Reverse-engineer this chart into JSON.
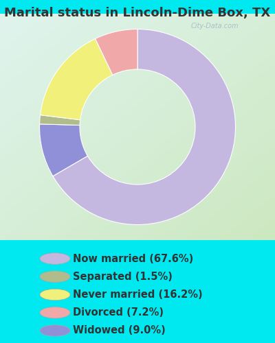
{
  "title": "Marital status in Lincoln-Dime Box, TX",
  "title_color": "#333333",
  "title_fontsize": 13,
  "slices": [
    {
      "label": "Now married (67.6%)",
      "value": 67.6,
      "color": "#c5b8e0"
    },
    {
      "label": "Separated (1.5%)",
      "value": 1.5,
      "color": "#b0bc8c"
    },
    {
      "label": "Never married (16.2%)",
      "value": 16.2,
      "color": "#f0f07a"
    },
    {
      "label": "Divorced (7.2%)",
      "value": 7.2,
      "color": "#f0a8a8"
    },
    {
      "label": "Widowed (9.0%)",
      "value": 9.0,
      "color": "#9090d8"
    }
  ],
  "bg_color": "#00e8f0",
  "chart_bg_top_left": "#d0f0e8",
  "chart_bg_bottom_right": "#d8ecc8",
  "watermark": "City-Data.com",
  "watermark_color": "#a0b8c8",
  "legend_fontsize": 10.5,
  "legend_marker_size": 12,
  "donut_order": [
    0,
    4,
    1,
    2,
    3
  ],
  "start_angle": 90
}
